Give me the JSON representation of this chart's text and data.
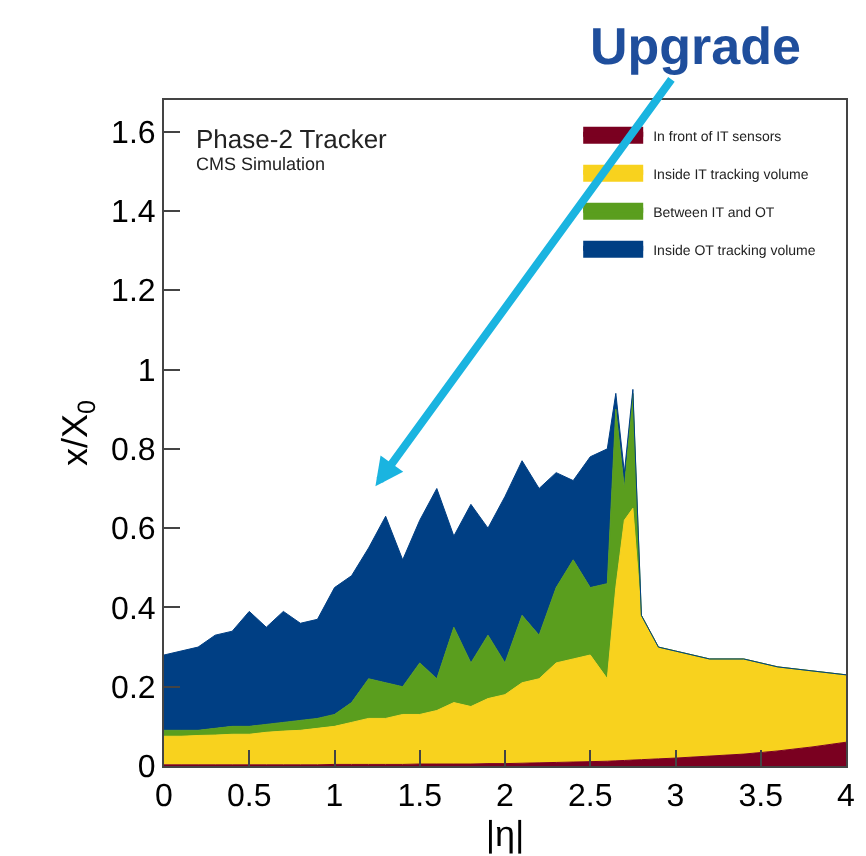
{
  "chart_data": {
    "type": "area",
    "stacked": true,
    "xlabel": "|η|",
    "ylabel": "x/X$_{0}$",
    "annotations": [
      "Phase-2 Tracker",
      "CMS Simulation",
      "Upgrade"
    ],
    "x": [
      0,
      0.1,
      0.2,
      0.3,
      0.4,
      0.5,
      0.6,
      0.7,
      0.8,
      0.9,
      1.0,
      1.1,
      1.2,
      1.3,
      1.4,
      1.5,
      1.6,
      1.7,
      1.8,
      1.9,
      2.0,
      2.1,
      2.2,
      2.3,
      2.4,
      2.5,
      2.6,
      2.65,
      2.7,
      2.75,
      2.8,
      2.9,
      3.0,
      3.2,
      3.4,
      3.6,
      3.8,
      4.0
    ],
    "series": [
      {
        "name": "In front of IT sensors",
        "color": "#7a0020",
        "values": [
          0.003,
          0.003,
          0.003,
          0.003,
          0.003,
          0.003,
          0.003,
          0.003,
          0.003,
          0.003,
          0.004,
          0.004,
          0.004,
          0.004,
          0.004,
          0.005,
          0.005,
          0.005,
          0.005,
          0.006,
          0.006,
          0.007,
          0.008,
          0.009,
          0.01,
          0.011,
          0.012,
          0.013,
          0.014,
          0.015,
          0.016,
          0.018,
          0.02,
          0.025,
          0.03,
          0.038,
          0.048,
          0.06
        ]
      },
      {
        "name": "Inside IT tracking volume",
        "color": "#f8d21e",
        "values": [
          0.072,
          0.072,
          0.074,
          0.075,
          0.077,
          0.077,
          0.082,
          0.085,
          0.087,
          0.092,
          0.096,
          0.106,
          0.116,
          0.116,
          0.126,
          0.125,
          0.135,
          0.155,
          0.145,
          0.164,
          0.174,
          0.203,
          0.212,
          0.251,
          0.26,
          0.269,
          0.208,
          0.437,
          0.606,
          0.635,
          0.364,
          0.282,
          0.27,
          0.245,
          0.24,
          0.212,
          0.192,
          0.17
        ]
      },
      {
        "name": "Between IT and OT",
        "color": "#5a9e1e",
        "values": [
          0.015,
          0.015,
          0.013,
          0.017,
          0.02,
          0.02,
          0.02,
          0.022,
          0.025,
          0.025,
          0.03,
          0.05,
          0.1,
          0.09,
          0.07,
          0.13,
          0.08,
          0.19,
          0.11,
          0.16,
          0.08,
          0.17,
          0.11,
          0.19,
          0.25,
          0.17,
          0.24,
          0.45,
          0.08,
          0.29,
          0,
          0,
          0,
          0,
          0,
          0,
          0,
          0
        ]
      },
      {
        "name": "Inside OT tracking volume",
        "color": "#003f84",
        "values": [
          0.19,
          0.2,
          0.21,
          0.235,
          0.24,
          0.29,
          0.245,
          0.28,
          0.245,
          0.25,
          0.32,
          0.32,
          0.33,
          0.42,
          0.32,
          0.36,
          0.48,
          0.23,
          0.4,
          0.27,
          0.42,
          0.39,
          0.37,
          0.29,
          0.2,
          0.33,
          0.34,
          0.04,
          0.04,
          0.01,
          0,
          0,
          0,
          0,
          0,
          0,
          0,
          0
        ]
      }
    ],
    "xlim": [
      0,
      4
    ],
    "xticks": [
      0,
      0.5,
      1,
      1.5,
      2,
      2.5,
      3,
      3.5,
      4
    ],
    "ylim": [
      0,
      1.68
    ],
    "yticks": [
      0,
      0.2,
      0.4,
      0.6,
      0.8,
      1,
      1.2,
      1.4,
      1.6
    ],
    "grid": false,
    "legend": "top right"
  }
}
